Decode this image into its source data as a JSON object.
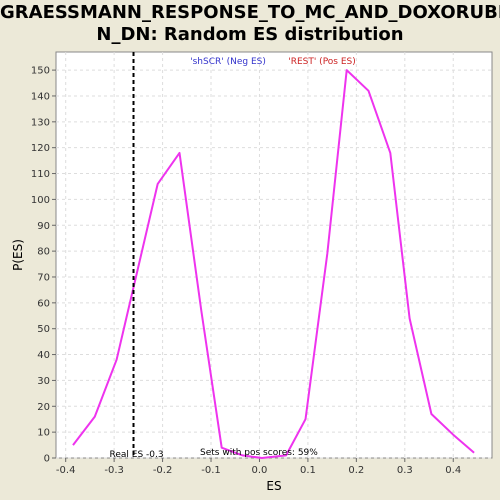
{
  "chart_data": {
    "type": "line",
    "title_line1": "GRAESSMANN_RESPONSE_TO_MC_AND_DOXORUBICI",
    "title_line2": "N_DN: Random ES distribution",
    "xlabel": "ES",
    "ylabel": "P(ES)",
    "xlim": [
      -0.42,
      0.48
    ],
    "ylim": [
      0,
      157
    ],
    "x_ticks": [
      -0.4,
      -0.3,
      -0.2,
      -0.1,
      0.0,
      0.1,
      0.2,
      0.3,
      0.4
    ],
    "x_tick_labels": [
      "-0.4",
      "-0.3",
      "-0.2",
      "-0.1",
      "0.0",
      "0.1",
      "0.2",
      "0.3",
      "0.4"
    ],
    "y_ticks": [
      0,
      10,
      20,
      30,
      40,
      50,
      60,
      70,
      80,
      90,
      100,
      110,
      120,
      130,
      140,
      150
    ],
    "y_tick_labels": [
      "0",
      "10",
      "20",
      "30",
      "40",
      "50",
      "60",
      "70",
      "80",
      "90",
      "100",
      "110",
      "120",
      "130",
      "140",
      "150"
    ],
    "grid": true,
    "series": [
      {
        "color": "#EE33EE",
        "x": [
          -0.385,
          -0.34,
          -0.295,
          -0.21,
          -0.165,
          -0.12,
          -0.078,
          -0.035,
          0.005,
          0.055,
          0.095,
          0.14,
          0.18,
          0.225,
          0.27,
          0.31,
          0.355,
          0.4,
          0.443
        ],
        "y": [
          5,
          16,
          38,
          106,
          118,
          57,
          4,
          1,
          0,
          1,
          15,
          79,
          150,
          142,
          118,
          54,
          17,
          9,
          2
        ]
      }
    ],
    "real_es": {
      "value": -0.26,
      "label": "Real ES -0.3",
      "color": "#000000"
    },
    "legend": {
      "neg_label": "'shSCR' (Neg ES)",
      "neg_color": "#3333CC",
      "pos_label": "'REST' (Pos ES)",
      "pos_color": "#CC2222",
      "placement": "top-center"
    },
    "pos_scores_text": "Sets with pos scores: 59%"
  }
}
